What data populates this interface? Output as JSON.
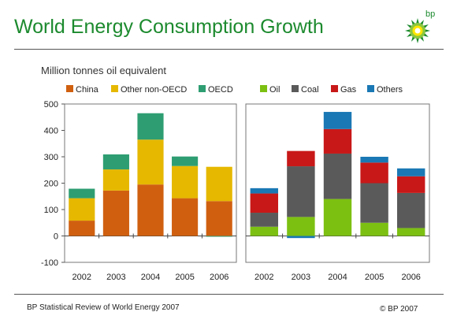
{
  "header": {
    "title": "World Energy Consumption Growth",
    "logo_text": "bp"
  },
  "units": "Million tonnes oil equivalent",
  "footer": {
    "source": "BP Statistical Review of World Energy 2007",
    "copyright": "© BP 2007"
  },
  "colors": {
    "title_green": "#1c8a2e",
    "China": "#d06010",
    "Other non-OECD": "#e6b800",
    "OECD": "#2e9e72",
    "Oil": "#7cc012",
    "Coal": "#5a5a5a",
    "Gas": "#c81818",
    "Others": "#1a78b4"
  },
  "chart_data": [
    {
      "type": "bar",
      "stacked": true,
      "title": "",
      "xlabel": "",
      "ylabel": "",
      "ylim": [
        -100,
        500
      ],
      "yticks": [
        -100,
        0,
        100,
        200,
        300,
        400,
        500
      ],
      "categories": [
        "2002",
        "2003",
        "2004",
        "2005",
        "2006"
      ],
      "series": [
        {
          "name": "China",
          "values": [
            58,
            172,
            195,
            143,
            132
          ]
        },
        {
          "name": "Other non-OECD",
          "values": [
            85,
            80,
            170,
            122,
            130
          ]
        },
        {
          "name": "OECD",
          "values": [
            36,
            57,
            100,
            36,
            -3
          ]
        }
      ]
    },
    {
      "type": "bar",
      "stacked": true,
      "title": "",
      "xlabel": "",
      "ylabel": "",
      "ylim": [
        -100,
        500
      ],
      "categories": [
        "2002",
        "2003",
        "2004",
        "2005",
        "2006"
      ],
      "series": [
        {
          "name": "Oil",
          "values": [
            35,
            72,
            140,
            50,
            30
          ]
        },
        {
          "name": "Coal",
          "values": [
            53,
            192,
            172,
            150,
            133
          ]
        },
        {
          "name": "Gas",
          "values": [
            73,
            58,
            93,
            78,
            63
          ]
        },
        {
          "name": "Others",
          "values": [
            20,
            -8,
            65,
            22,
            30
          ]
        }
      ]
    }
  ]
}
